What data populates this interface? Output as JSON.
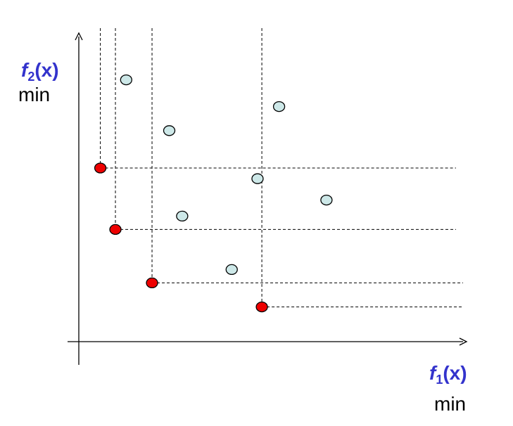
{
  "colors": {
    "label_color": "#3333cc",
    "pareto_fill": "#ee0000",
    "dominated_fill": "#cde8e8",
    "axis": "#000000"
  },
  "axes": {
    "x": {
      "label_letter": "f",
      "label_sub": "1",
      "label_arg": "(x)",
      "goal": "min"
    },
    "y": {
      "label_letter": "f",
      "label_sub": "2",
      "label_arg": "(x)",
      "goal": "min"
    }
  },
  "points": {
    "pareto": [
      {
        "f1": 1.0,
        "f2": 6.5
      },
      {
        "f1": 1.7,
        "f2": 4.2
      },
      {
        "f1": 3.4,
        "f2": 2.2
      },
      {
        "f1": 8.5,
        "f2": 1.3
      }
    ],
    "dominated": [
      {
        "f1": 2.2,
        "f2": 9.8
      },
      {
        "f1": 4.2,
        "f2": 7.9
      },
      {
        "f1": 4.8,
        "f2": 4.7
      },
      {
        "f1": 8.3,
        "f2": 6.1
      },
      {
        "f1": 9.3,
        "f2": 8.8
      },
      {
        "f1": 11.5,
        "f2": 5.3
      },
      {
        "f1": 7.1,
        "f2": 2.7
      }
    ]
  }
}
